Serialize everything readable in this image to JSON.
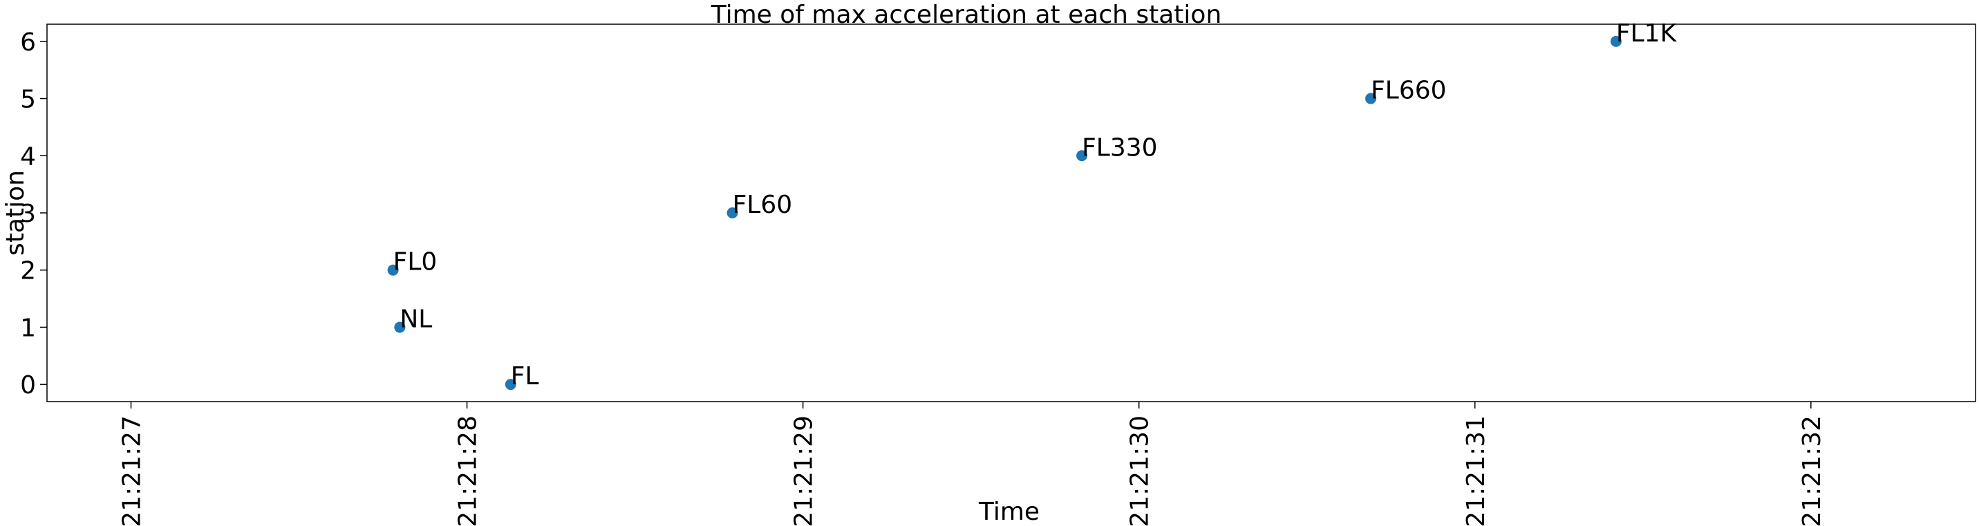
{
  "chart_data": {
    "type": "scatter",
    "title": "Time of max acceleration at each station",
    "xlabel": "Time",
    "ylabel": "station",
    "x_ticks": [
      "21:21:27",
      "21:21:28",
      "21:21:29",
      "21:21:30",
      "21:21:31",
      "21:21:32"
    ],
    "y_ticks": [
      0,
      1,
      2,
      3,
      4,
      5,
      6
    ],
    "xlim": [
      "21:21:26.75",
      "21:21:32.49"
    ],
    "ylim": [
      -0.3,
      6.3
    ],
    "grid": false,
    "legend": "none",
    "marker_color": "#1f77b4",
    "points": [
      {
        "x": "21:21:28.13",
        "y": 0,
        "label": "FL"
      },
      {
        "x": "21:21:27.80",
        "y": 1,
        "label": "NL"
      },
      {
        "x": "21:21:27.78",
        "y": 2,
        "label": "FL0"
      },
      {
        "x": "21:21:28.79",
        "y": 3,
        "label": "FL60"
      },
      {
        "x": "21:21:29.83",
        "y": 4,
        "label": "FL330"
      },
      {
        "x": "21:21:30.69",
        "y": 5,
        "label": "FL660"
      },
      {
        "x": "21:21:31.42",
        "y": 6,
        "label": "FL1K"
      }
    ]
  }
}
